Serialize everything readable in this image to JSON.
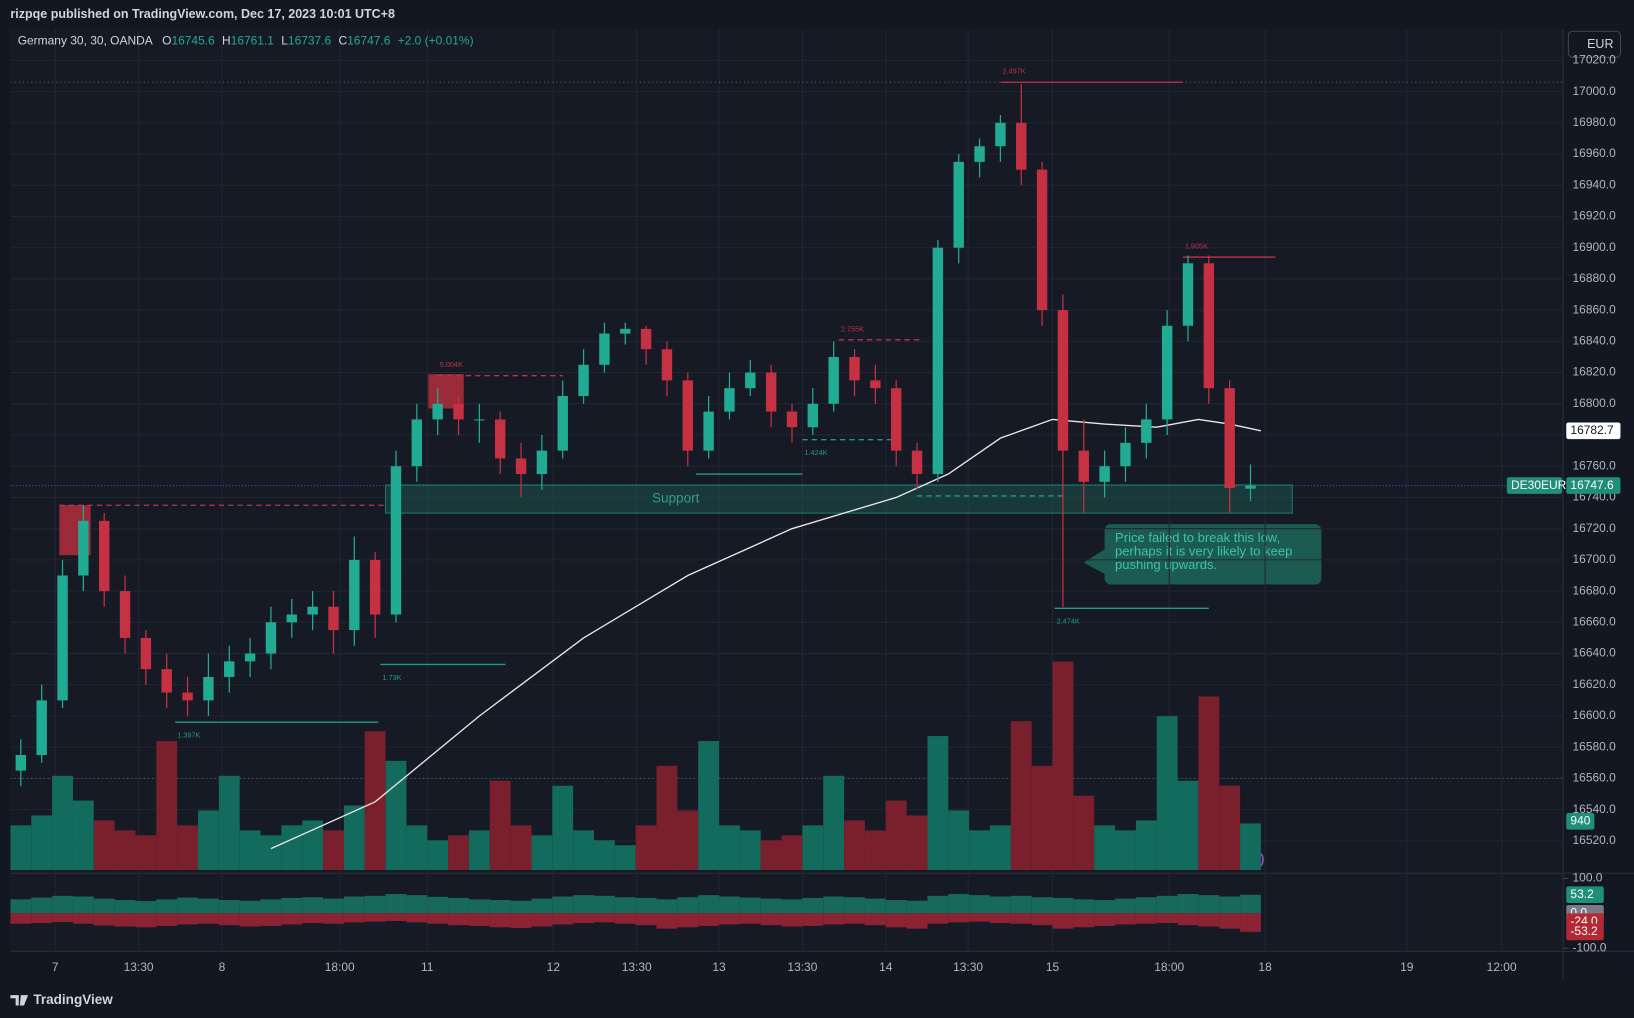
{
  "header": "rizpqe published on TradingView.com, Dec 17, 2023 10:01 UTC+8",
  "footer": "TradingView",
  "currency_button": "EUR",
  "chart_data": {
    "type": "candlestick",
    "legend": {
      "symbol": "Germany 30, 30, OANDA",
      "keys": [
        "O",
        "H",
        "L",
        "C"
      ],
      "open": 16745.6,
      "high": 16761.1,
      "low": 16737.6,
      "close": 16747.6,
      "change": "+2.0 (+0.01%)"
    },
    "symbol_badge": "DE30EUR",
    "up_color": "#22ab94",
    "down_color": "#c53142",
    "x": [
      1,
      3,
      5,
      7,
      9,
      11,
      13,
      15,
      17,
      19,
      21,
      23,
      25,
      27,
      29,
      31,
      33,
      35,
      37,
      39,
      41,
      43,
      45,
      47,
      49,
      51,
      53,
      55,
      57,
      59,
      61,
      63,
      65,
      67,
      69,
      71,
      73,
      75,
      77,
      79,
      81,
      83,
      85,
      87,
      89,
      91,
      93,
      95,
      97,
      99,
      101,
      103,
      105,
      107,
      109,
      111,
      113,
      115,
      117,
      119
    ],
    "open": [
      16565,
      16575,
      16610,
      16690,
      16725,
      16680,
      16650,
      16630,
      16615,
      16610,
      16625,
      16635,
      16640,
      16660,
      16665,
      16670,
      16655,
      16700,
      16665,
      16760,
      16790,
      16800,
      16790,
      16790,
      16765,
      16755,
      16770,
      16805,
      16825,
      16845,
      16848,
      16835,
      16815,
      16770,
      16795,
      16810,
      16820,
      16795,
      16785,
      16800,
      16830,
      16815,
      16810,
      16770,
      16755,
      16900,
      16955,
      16965,
      16980,
      16950,
      16860,
      16770,
      16750,
      16760,
      16775,
      16790,
      16850,
      16890,
      16810,
      16745.6
    ],
    "high": [
      16585,
      16620,
      16700,
      16735,
      16730,
      16690,
      16655,
      16640,
      16625,
      16640,
      16645,
      16650,
      16670,
      16675,
      16680,
      16680,
      16715,
      16705,
      16770,
      16800,
      16810,
      16805,
      16800,
      16795,
      16775,
      16780,
      16815,
      16835,
      16852,
      16852,
      16850,
      16840,
      16820,
      16805,
      16820,
      16828,
      16825,
      16800,
      16810,
      16840,
      16835,
      16825,
      16815,
      16775,
      16905,
      16960,
      16970,
      16985,
      17005,
      16955,
      16870,
      16790,
      16770,
      16785,
      16800,
      16860,
      16895,
      16895,
      16815,
      16761.1
    ],
    "low": [
      16555,
      16570,
      16605,
      16680,
      16670,
      16640,
      16620,
      16605,
      16600,
      16600,
      16615,
      16625,
      16630,
      16650,
      16655,
      16640,
      16645,
      16650,
      16660,
      16750,
      16780,
      16780,
      16775,
      16755,
      16740,
      16745,
      16765,
      16800,
      16820,
      16838,
      16825,
      16805,
      16760,
      16765,
      16790,
      16805,
      16785,
      16775,
      16780,
      16795,
      16805,
      16800,
      16760,
      16745,
      16750,
      16890,
      16945,
      16955,
      16940,
      16850,
      16670,
      16730,
      16740,
      16750,
      16765,
      16780,
      16840,
      16800,
      16730,
      16737.6
    ],
    "close": [
      16575,
      16610,
      16690,
      16725,
      16680,
      16650,
      16630,
      16615,
      16610,
      16625,
      16635,
      16640,
      16660,
      16665,
      16670,
      16655,
      16700,
      16665,
      16760,
      16790,
      16800,
      16790,
      16790,
      16765,
      16755,
      16770,
      16805,
      16825,
      16845,
      16848,
      16835,
      16815,
      16770,
      16795,
      16810,
      16820,
      16795,
      16785,
      16800,
      16830,
      16815,
      16810,
      16770,
      16755,
      16900,
      16955,
      16965,
      16980,
      16950,
      16860,
      16770,
      16750,
      16760,
      16775,
      16790,
      16850,
      16890,
      16810,
      16746,
      16747.6
    ],
    "xlim": [
      0,
      149
    ],
    "xticks": [
      {
        "value": 4.3,
        "label": "7"
      },
      {
        "value": 12.3,
        "label": "13:30"
      },
      {
        "value": 20.3,
        "label": "8"
      },
      {
        "value": 31.6,
        "label": "18:00"
      },
      {
        "value": 40,
        "label": "11"
      },
      {
        "value": 52.1,
        "label": "12"
      },
      {
        "value": 60.1,
        "label": "13:30"
      },
      {
        "value": 68,
        "label": "13"
      },
      {
        "value": 76,
        "label": "13:30"
      },
      {
        "value": 84,
        "label": "14"
      },
      {
        "value": 91.9,
        "label": "13:30"
      },
      {
        "value": 100,
        "label": "15"
      },
      {
        "value": 111.2,
        "label": "18:00"
      },
      {
        "value": 120.4,
        "label": "18"
      },
      {
        "value": 134,
        "label": "19"
      },
      {
        "value": 143.1,
        "label": "12:00"
      }
    ],
    "ylim": [
      16501.3,
      17040
    ],
    "yticks": [
      {
        "value": 16520,
        "label": "16520.0"
      },
      {
        "value": 16540,
        "label": "16540.0"
      },
      {
        "value": 16560,
        "label": "16560.0"
      },
      {
        "value": 16580,
        "label": "16580.0"
      },
      {
        "value": 16600,
        "label": "16600.0"
      },
      {
        "value": 16620,
        "label": "16620.0"
      },
      {
        "value": 16640,
        "label": "16640.0"
      },
      {
        "value": 16660,
        "label": "16660.0"
      },
      {
        "value": 16680,
        "label": "16680.0"
      },
      {
        "value": 16700,
        "label": "16700.0"
      },
      {
        "value": 16720,
        "label": "16720.0"
      },
      {
        "value": 16740,
        "label": "16740.0"
      },
      {
        "value": 16760,
        "label": "16760.0"
      },
      {
        "value": 16780,
        "label": "16780.0"
      },
      {
        "value": 16800,
        "label": "16800.0"
      },
      {
        "value": 16820,
        "label": "16820.0"
      },
      {
        "value": 16840,
        "label": "16840.0"
      },
      {
        "value": 16860,
        "label": "16860.0"
      },
      {
        "value": 16880,
        "label": "16880.0"
      },
      {
        "value": 16900,
        "label": "16900.0"
      },
      {
        "value": 16920,
        "label": "16920.0"
      },
      {
        "value": 16940,
        "label": "16940.0"
      },
      {
        "value": 16960,
        "label": "16960.0"
      },
      {
        "value": 16980,
        "label": "16980.0"
      },
      {
        "value": 17000,
        "label": "17000.0"
      },
      {
        "value": 17020,
        "label": "17020.0"
      }
    ],
    "grid": true,
    "moving_average": {
      "color": "#e6e6e6",
      "x": [
        25,
        35,
        45,
        55,
        65,
        75,
        85,
        90,
        95,
        100,
        105,
        110,
        114,
        117,
        120
      ],
      "values": [
        16515,
        16545,
        16600,
        16650,
        16690,
        16720,
        16740,
        16755,
        16778,
        16790,
        16787,
        16785,
        16790,
        16787,
        16782.7
      ]
    },
    "volume": {
      "up_color": "#136b5e",
      "down_color": "#7a1f2c",
      "values": [
        900,
        1100,
        1900,
        1400,
        1000,
        800,
        700,
        2600,
        900,
        1200,
        1900,
        800,
        700,
        900,
        1000,
        800,
        1300,
        2800,
        2200,
        900,
        600,
        700,
        800,
        1800,
        900,
        700,
        1700,
        800,
        600,
        500,
        900,
        2100,
        1200,
        2600,
        900,
        800,
        600,
        700,
        900,
        1900,
        1000,
        800,
        1400,
        1100,
        2700,
        1200,
        800,
        900,
        3000,
        2100,
        4200,
        1500,
        900,
        800,
        1000,
        3100,
        1800,
        3500,
        1700,
        940
      ]
    },
    "reference_lines": [
      {
        "price": 17006,
        "color": "#5d606b"
      },
      {
        "price": 16560,
        "color": "#5d606b"
      }
    ],
    "zones": [
      {
        "label": "Support",
        "low": 16730,
        "high": 16748,
        "x": [
          36,
          123
        ],
        "color": "#1b5e55"
      },
      {
        "low": 16703,
        "high": 16735,
        "x": [
          4.7,
          7.7
        ],
        "color": "#a82c3a"
      },
      {
        "low": 16797,
        "high": 16819,
        "x": [
          40.1,
          43.5
        ],
        "color": "#a82c3a"
      }
    ],
    "levels": [
      {
        "price": 16735,
        "x": [
          4.7,
          36
        ],
        "color": "#c2304a",
        "style": "dashed"
      },
      {
        "price": 16818,
        "x": [
          41,
          53
        ],
        "color": "#c2304a",
        "style": "dashed",
        "label": "5.004K"
      },
      {
        "price": 16633,
        "x": [
          35.5,
          47.5
        ],
        "color": "#1f9c86",
        "style": "solid",
        "label": "1.73K"
      },
      {
        "price": 16596,
        "x": [
          15.8,
          35.3
        ],
        "color": "#1f9c86",
        "style": "solid",
        "label": "1.397K"
      },
      {
        "price": 16755,
        "x": [
          65.8,
          76
        ],
        "color": "#1f9c86",
        "style": "solid"
      },
      {
        "price": 16777,
        "x": [
          76,
          85
        ],
        "color": "#1f9c86",
        "style": "dashed",
        "label": "1.424K"
      },
      {
        "price": 16841,
        "x": [
          79.5,
          87.5
        ],
        "color": "#c2304a",
        "style": "dashed",
        "label": "2.755K"
      },
      {
        "price": 17006,
        "x": [
          95,
          112.5
        ],
        "color": "#c2304a",
        "style": "solid",
        "label": "2.497K"
      },
      {
        "price": 16894,
        "x": [
          112.5,
          121.4
        ],
        "color": "#c2304a",
        "style": "solid",
        "label": "1.905K"
      },
      {
        "price": 16669,
        "x": [
          100.2,
          115
        ],
        "color": "#1f9c86",
        "style": "solid",
        "label": "2.474K"
      },
      {
        "price": 16741,
        "x": [
          87,
          101
        ],
        "color": "#1f9c86",
        "style": "dashed"
      }
    ],
    "annotation": "Price failed to break this low, perhaps it is very likely to keep pushing upwards.",
    "oscillator": {
      "ylim": [
        -100,
        100
      ],
      "yticks": [
        {
          "value": 100,
          "label": "100.0"
        },
        {
          "value": -100,
          "label": "-100.0"
        }
      ],
      "series": [
        {
          "color": "#17695c",
          "values": [
            40,
            45,
            50,
            48,
            42,
            38,
            35,
            40,
            45,
            42,
            38,
            36,
            40,
            44,
            46,
            42,
            48,
            50,
            55,
            52,
            47,
            44,
            40,
            38,
            36,
            42,
            48,
            52,
            50,
            46,
            44,
            40,
            46,
            52,
            48,
            45,
            42,
            40,
            44,
            48,
            46,
            42,
            38,
            36,
            50,
            55,
            52,
            48,
            50,
            46,
            44,
            40,
            38,
            42,
            46,
            50,
            55,
            52,
            48,
            53.2
          ]
        },
        {
          "color": "#8c2332",
          "values": [
            -30,
            -28,
            -25,
            -30,
            -35,
            -38,
            -40,
            -36,
            -32,
            -30,
            -34,
            -38,
            -36,
            -32,
            -28,
            -30,
            -26,
            -24,
            -22,
            -26,
            -30,
            -34,
            -36,
            -40,
            -42,
            -38,
            -32,
            -28,
            -26,
            -30,
            -34,
            -44,
            -40,
            -36,
            -32,
            -30,
            -34,
            -38,
            -36,
            -32,
            -30,
            -34,
            -40,
            -44,
            -30,
            -26,
            -24,
            -28,
            -30,
            -34,
            -44,
            -40,
            -36,
            -32,
            -30,
            -28,
            -34,
            -38,
            -44,
            -53.2
          ]
        }
      ],
      "badges": [
        {
          "value": 53.2,
          "label": "53.2",
          "color": "#1f8f7a"
        },
        {
          "value": 0,
          "label": "0.0",
          "color": "#787b86"
        },
        {
          "value": -24,
          "label": "-24.0",
          "color": "#b22833"
        },
        {
          "value": -53.2,
          "label": "-53.2",
          "color": "#b22833"
        }
      ]
    }
  }
}
